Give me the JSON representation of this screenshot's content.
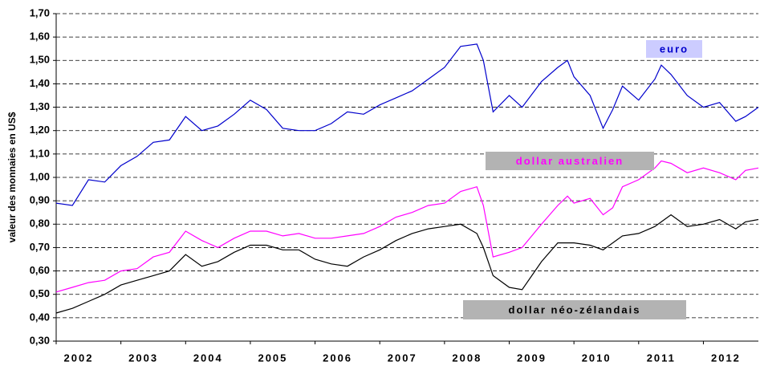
{
  "chart_data": {
    "type": "line",
    "y_label": "valeur des monnaies en US$",
    "x": [
      2002.0,
      2002.25,
      2002.5,
      2002.75,
      2003.0,
      2003.25,
      2003.5,
      2003.75,
      2004.0,
      2004.25,
      2004.5,
      2004.75,
      2005.0,
      2005.25,
      2005.5,
      2005.75,
      2006.0,
      2006.25,
      2006.5,
      2006.75,
      2007.0,
      2007.25,
      2007.5,
      2007.75,
      2008.0,
      2008.25,
      2008.5,
      2008.6,
      2008.75,
      2009.0,
      2009.2,
      2009.5,
      2009.75,
      2009.9,
      2010.0,
      2010.25,
      2010.45,
      2010.6,
      2010.75,
      2011.0,
      2011.25,
      2011.35,
      2011.5,
      2011.75,
      2012.0,
      2012.25,
      2012.5,
      2012.65,
      2012.85
    ],
    "series": [
      {
        "name": "euro",
        "color": "#0000cc",
        "label_bg": "#ccccff",
        "values": [
          0.89,
          0.88,
          0.99,
          0.98,
          1.05,
          1.09,
          1.15,
          1.16,
          1.26,
          1.2,
          1.22,
          1.27,
          1.33,
          1.29,
          1.21,
          1.2,
          1.2,
          1.23,
          1.28,
          1.27,
          1.31,
          1.34,
          1.37,
          1.42,
          1.47,
          1.56,
          1.57,
          1.5,
          1.28,
          1.35,
          1.3,
          1.41,
          1.47,
          1.5,
          1.43,
          1.35,
          1.21,
          1.29,
          1.39,
          1.33,
          1.42,
          1.48,
          1.44,
          1.35,
          1.3,
          1.32,
          1.24,
          1.26,
          1.3
        ]
      },
      {
        "name": "dollar australien",
        "color": "#ff00ff",
        "label_bg": "#b3b3b3",
        "values": [
          0.51,
          0.53,
          0.55,
          0.56,
          0.6,
          0.61,
          0.66,
          0.68,
          0.77,
          0.73,
          0.7,
          0.74,
          0.77,
          0.77,
          0.75,
          0.76,
          0.74,
          0.74,
          0.75,
          0.76,
          0.79,
          0.83,
          0.85,
          0.88,
          0.89,
          0.94,
          0.96,
          0.88,
          0.66,
          0.68,
          0.7,
          0.8,
          0.88,
          0.92,
          0.89,
          0.91,
          0.84,
          0.87,
          0.96,
          0.99,
          1.04,
          1.07,
          1.06,
          1.02,
          1.04,
          1.02,
          0.99,
          1.03,
          1.04
        ]
      },
      {
        "name": "dollar néo-zélandais",
        "color": "#000000",
        "label_bg": "#b3b3b3",
        "values": [
          0.42,
          0.44,
          0.47,
          0.5,
          0.54,
          0.56,
          0.58,
          0.6,
          0.67,
          0.62,
          0.64,
          0.68,
          0.71,
          0.71,
          0.69,
          0.69,
          0.65,
          0.63,
          0.62,
          0.66,
          0.69,
          0.73,
          0.76,
          0.78,
          0.79,
          0.8,
          0.76,
          0.7,
          0.58,
          0.53,
          0.52,
          0.64,
          0.72,
          0.72,
          0.72,
          0.71,
          0.69,
          0.72,
          0.75,
          0.76,
          0.79,
          0.81,
          0.84,
          0.79,
          0.8,
          0.82,
          0.78,
          0.81,
          0.82
        ]
      }
    ],
    "xlim": [
      2002.0,
      2012.85
    ],
    "xticks": [
      2002,
      2003,
      2004,
      2005,
      2006,
      2007,
      2008,
      2009,
      2010,
      2011,
      2012
    ],
    "ylim": [
      0.3,
      1.7
    ],
    "yticks": [
      {
        "value": 0.3,
        "label": "0,30"
      },
      {
        "value": 0.4,
        "label": "0,40"
      },
      {
        "value": 0.5,
        "label": "0,50"
      },
      {
        "value": 0.6,
        "label": "0,60"
      },
      {
        "value": 0.7,
        "label": "0,70"
      },
      {
        "value": 0.8,
        "label": "0,80"
      },
      {
        "value": 0.9,
        "label": "0,90"
      },
      {
        "value": 1.0,
        "label": "1,00"
      },
      {
        "value": 1.1,
        "label": "1,10"
      },
      {
        "value": 1.2,
        "label": "1,20"
      },
      {
        "value": 1.3,
        "label": "1,30"
      },
      {
        "value": 1.4,
        "label": "1,40"
      },
      {
        "value": 1.5,
        "label": "1,50"
      },
      {
        "value": 1.6,
        "label": "1,60"
      },
      {
        "value": 1.7,
        "label": "1,70"
      }
    ],
    "grid": true
  }
}
